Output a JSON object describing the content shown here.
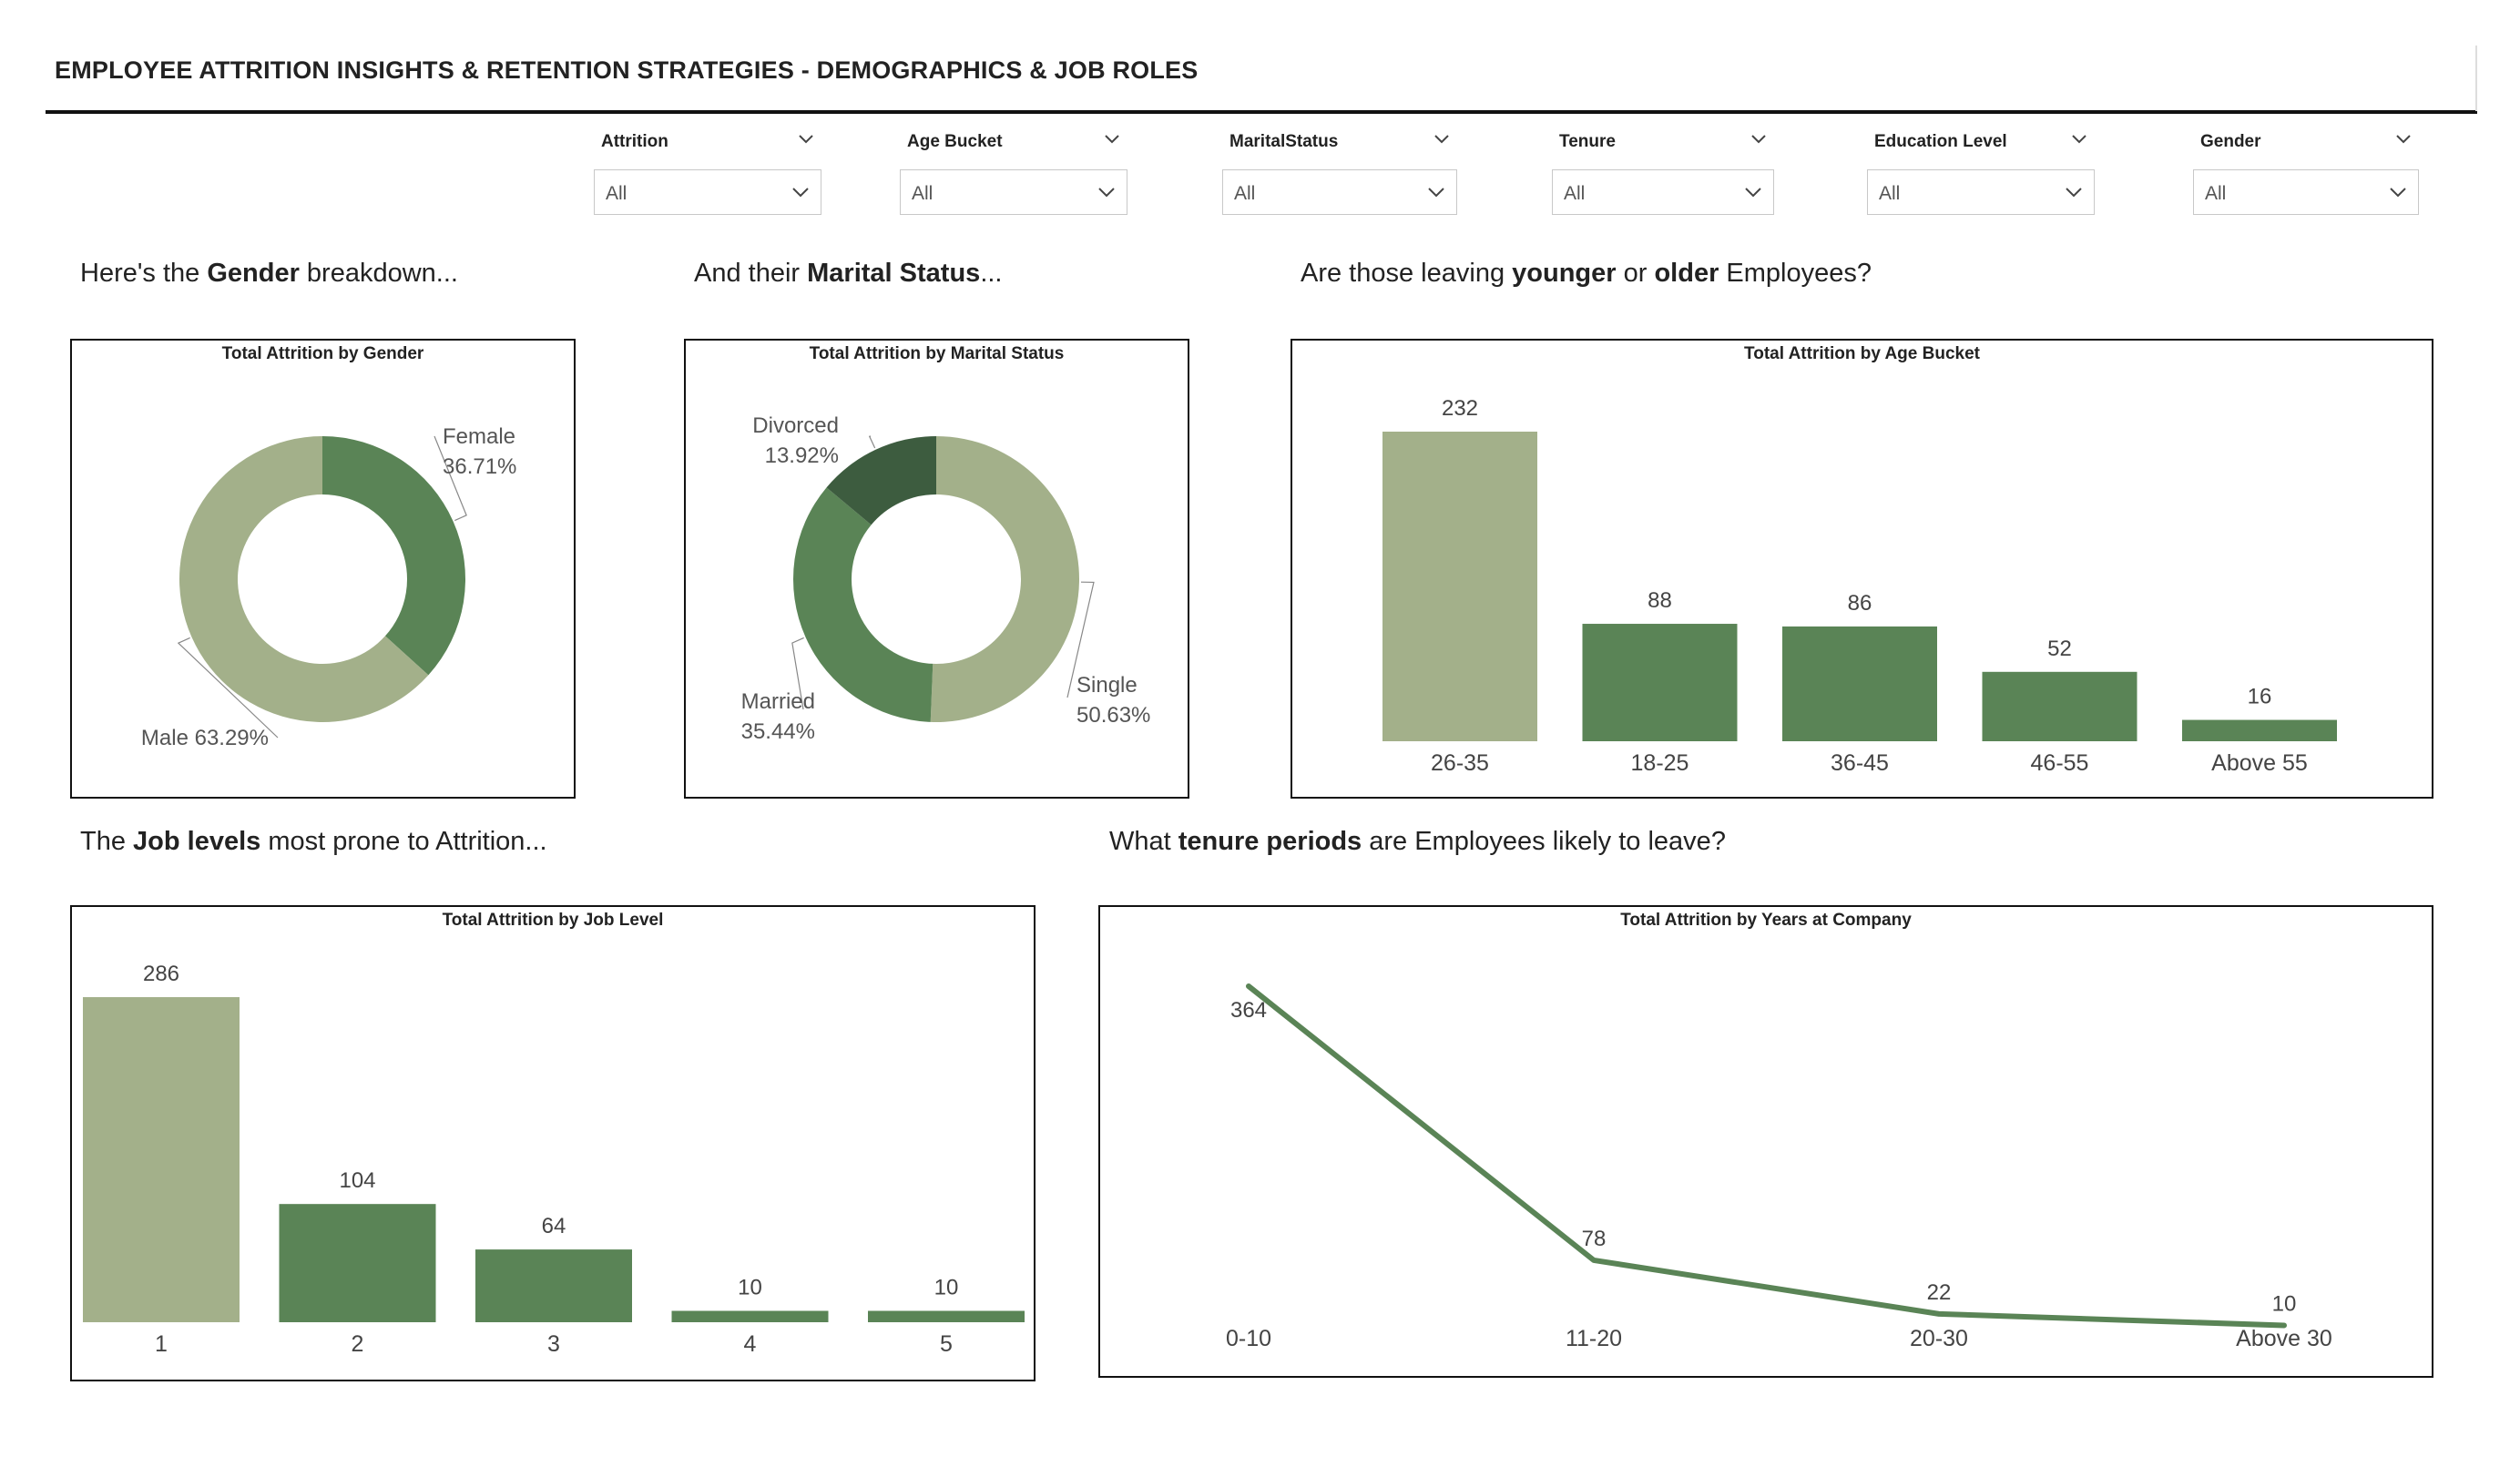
{
  "page": {
    "title": "EMPLOYEE ATTRITION INSIGHTS & RETENTION STRATEGIES - DEMOGRAPHICS & JOB ROLES"
  },
  "slicers": [
    {
      "label": "Attrition",
      "value": "All"
    },
    {
      "label": "Age Bucket",
      "value": "All"
    },
    {
      "label": "MaritalStatus",
      "value": "All"
    },
    {
      "label": "Tenure",
      "value": "All"
    },
    {
      "label": "Education Level",
      "value": "All"
    },
    {
      "label": "Gender",
      "value": "All"
    }
  ],
  "captions": {
    "gender": {
      "pre": "Here's the ",
      "bold": "Gender",
      "post": " breakdown..."
    },
    "marital": {
      "pre": "And their ",
      "bold": "Marital Status",
      "post": "..."
    },
    "age": {
      "pre": "Are those leaving ",
      "bold": "younger",
      "mid": " or ",
      "bold2": "older",
      "post": " Employees?"
    },
    "job": {
      "pre": "The ",
      "bold": "Job levels",
      "post": " most prone to Attrition..."
    },
    "tenure": {
      "pre": "What ",
      "bold": "tenure periods",
      "post": " are Employees likely to leave?"
    }
  },
  "colors": {
    "light_green": "#a3b08a",
    "mid_green": "#5a8456",
    "dark_green": "#3d5c3f"
  },
  "chart_data": [
    {
      "id": "gender",
      "type": "pie",
      "title": "Total Attrition by Gender",
      "slices": [
        {
          "label": "Female",
          "value": 36.71,
          "display": "36.71%",
          "color": "#5a8456"
        },
        {
          "label": "Male",
          "value": 63.29,
          "display": "63.29%",
          "color": "#a3b08a"
        }
      ]
    },
    {
      "id": "marital",
      "type": "pie",
      "title": "Total Attrition by Marital Status",
      "slices": [
        {
          "label": "Single",
          "value": 50.63,
          "display": "50.63%",
          "color": "#a3b08a"
        },
        {
          "label": "Married",
          "value": 35.44,
          "display": "35.44%",
          "color": "#5a8456"
        },
        {
          "label": "Divorced",
          "value": 13.92,
          "display": "13.92%",
          "color": "#3d5c3f"
        }
      ]
    },
    {
      "id": "age",
      "type": "bar",
      "title": "Total Attrition by Age Bucket",
      "categories": [
        "26-35",
        "18-25",
        "36-45",
        "46-55",
        "Above 55"
      ],
      "values": [
        232,
        88,
        86,
        52,
        16
      ],
      "ylim": [
        0,
        232
      ]
    },
    {
      "id": "joblevel",
      "type": "bar",
      "title": "Total Attrition by Job Level",
      "categories": [
        "1",
        "2",
        "3",
        "4",
        "5"
      ],
      "values": [
        286,
        104,
        64,
        10,
        10
      ],
      "ylim": [
        0,
        286
      ]
    },
    {
      "id": "years",
      "type": "line",
      "title": "Total Attrition by Years at Company",
      "categories": [
        "0-10",
        "11-20",
        "20-30",
        "Above 30"
      ],
      "values": [
        364,
        78,
        22,
        10
      ],
      "ylim": [
        0,
        364
      ]
    }
  ]
}
